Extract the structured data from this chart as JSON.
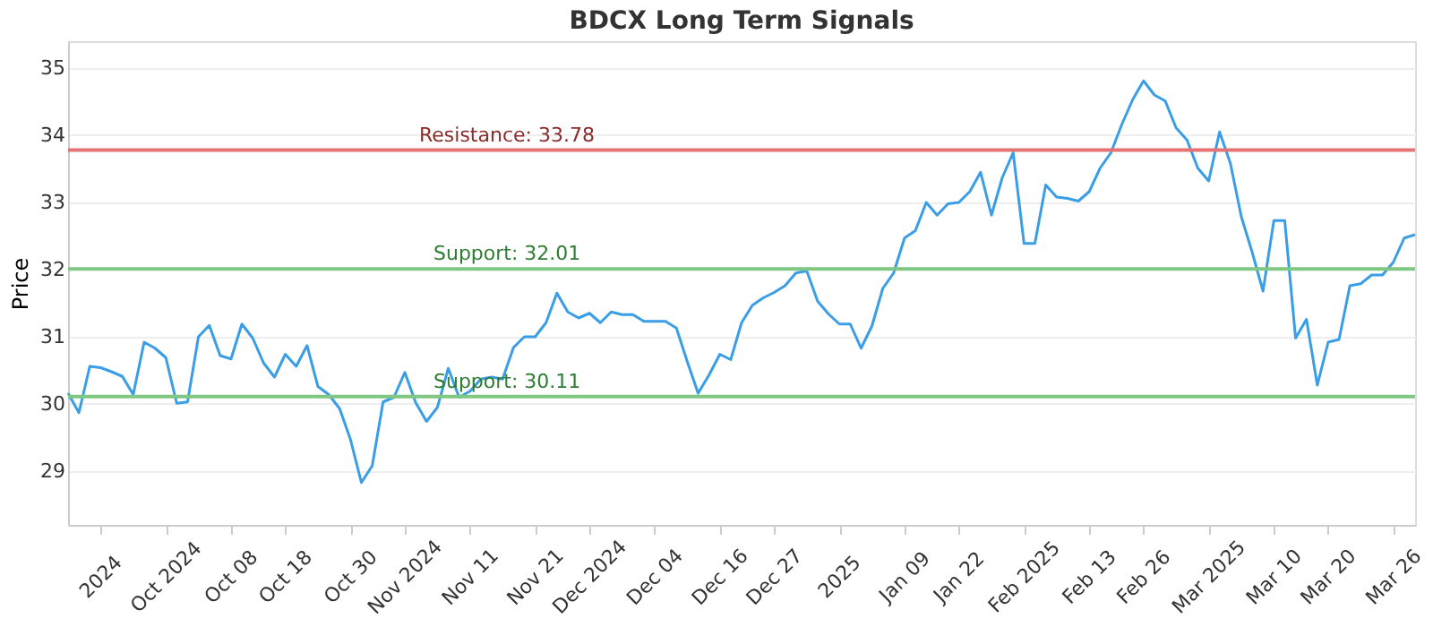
{
  "chart_data": {
    "type": "line",
    "title": "BDCX Long Term Signals",
    "ylabel": "Price",
    "categories": [
      null,
      null,
      null,
      "2024",
      null,
      null,
      null,
      null,
      null,
      "Oct 2024",
      null,
      null,
      null,
      null,
      null,
      "Oct 08",
      null,
      null,
      null,
      null,
      "Oct 18",
      null,
      null,
      null,
      null,
      null,
      "Oct 30",
      null,
      null,
      null,
      null,
      "Nov 2024",
      null,
      null,
      null,
      null,
      null,
      "Nov 11",
      null,
      null,
      null,
      null,
      null,
      "Nov 21",
      null,
      null,
      null,
      null,
      "Dec 2024",
      null,
      null,
      null,
      null,
      null,
      "Dec 04",
      null,
      null,
      null,
      null,
      null,
      "Dec 16",
      null,
      null,
      null,
      null,
      "Dec 27",
      null,
      null,
      null,
      null,
      null,
      "2025",
      null,
      null,
      null,
      null,
      null,
      "Jan 09",
      null,
      null,
      null,
      null,
      "Jan 22",
      null,
      null,
      null,
      null,
      null,
      "Feb 2025",
      null,
      null,
      null,
      null,
      null,
      "Feb 13",
      null,
      null,
      null,
      null,
      "Feb 26",
      null,
      null,
      null,
      null,
      null,
      "Mar 2025",
      null,
      null,
      null,
      null,
      null,
      "Mar 10",
      null,
      null,
      null,
      null,
      "Mar 20",
      null,
      null,
      null,
      null,
      null,
      "Mar 26",
      null,
      null
    ],
    "series": [
      {
        "color": "#3a9ee6",
        "values": [
          30.16,
          29.87,
          30.56,
          30.54,
          30.48,
          30.41,
          30.14,
          30.92,
          30.83,
          30.69,
          30.01,
          30.03,
          31.0,
          31.17,
          30.72,
          30.67,
          31.19,
          30.98,
          30.61,
          30.4,
          30.74,
          30.56,
          30.87,
          30.26,
          30.14,
          29.93,
          29.47,
          28.83,
          29.08,
          30.03,
          30.1,
          30.47,
          30.02,
          29.74,
          29.95,
          30.53,
          30.1,
          30.19,
          30.37,
          30.4,
          30.37,
          30.84,
          31.0,
          31.0,
          31.21,
          31.65,
          31.37,
          31.28,
          31.35,
          31.21,
          31.37,
          31.33,
          31.33,
          31.23,
          31.23,
          31.23,
          31.13,
          30.63,
          30.16,
          30.43,
          30.74,
          30.66,
          31.21,
          31.47,
          31.58,
          31.66,
          31.76,
          31.95,
          31.98,
          31.53,
          31.34,
          31.19,
          31.19,
          30.83,
          31.16,
          31.72,
          31.95,
          32.47,
          32.58,
          33.0,
          32.81,
          32.98,
          33.0,
          33.16,
          33.45,
          32.81,
          33.37,
          33.74,
          32.39,
          32.39,
          33.26,
          33.08,
          33.06,
          33.02,
          33.16,
          33.51,
          33.74,
          34.16,
          34.53,
          34.81,
          34.6,
          34.51,
          34.11,
          33.93,
          33.51,
          33.32,
          34.05,
          33.58,
          32.79,
          32.26,
          31.68,
          32.73,
          32.73,
          30.98,
          31.26,
          30.28,
          30.92,
          30.96,
          31.76,
          31.79,
          31.92,
          31.92,
          32.11,
          32.47,
          32.52
        ]
      }
    ],
    "ylim": [
      28.2,
      35.4
    ],
    "yticks": [
      29,
      30,
      31,
      32,
      33,
      34,
      35
    ],
    "grid": "y",
    "marker": "none",
    "line_style": "solid",
    "ref_lines": [
      {
        "axis": "y",
        "value": 33.78,
        "label": "Resistance: 33.78",
        "color": "#e57373"
      },
      {
        "axis": "y",
        "value": 32.01,
        "label": "Support: 32.01",
        "color": "#81c784"
      },
      {
        "axis": "y",
        "value": 30.11,
        "label": "Support: 30.11",
        "color": "#81c784"
      }
    ]
  }
}
